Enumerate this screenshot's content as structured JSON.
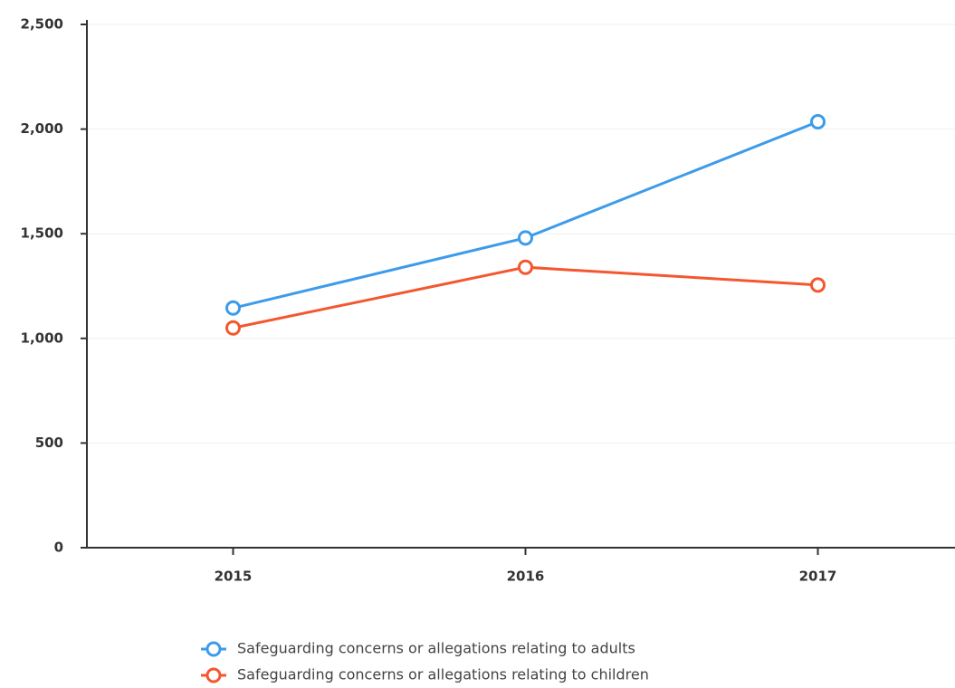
{
  "chart_data": {
    "type": "line",
    "categories": [
      "2015",
      "2016",
      "2017"
    ],
    "series": [
      {
        "name": "Safeguarding concerns or allegations relating to adults",
        "color": "#3d9be9",
        "values": [
          1145,
          1480,
          2035
        ]
      },
      {
        "name": "Safeguarding concerns or allegations relating to children",
        "color": "#f4572f",
        "values": [
          1050,
          1340,
          1255
        ]
      }
    ],
    "ylim": [
      0,
      2500
    ],
    "yticks": [
      0,
      500,
      {
        "value": 1000,
        "label": "1,000"
      },
      {
        "value": 1500,
        "label": "1,500"
      },
      {
        "value": 2000,
        "label": "2,000"
      },
      {
        "value": 2500,
        "label": "2,500"
      }
    ],
    "grid": true
  }
}
